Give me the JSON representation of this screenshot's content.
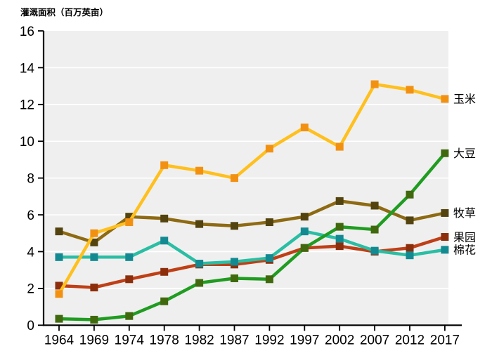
{
  "page": {
    "title_label": "灌溉面积（百万英亩）"
  },
  "chart_data": {
    "type": "line",
    "title": "灌溉面积（百万英亩）",
    "ylabel": "灌溉面积（百万英亩）",
    "xlabel": "",
    "categories": [
      "1964",
      "1969",
      "1974",
      "1978",
      "1982",
      "1987",
      "1992",
      "1997",
      "2002",
      "2007",
      "2012",
      "2017"
    ],
    "series": [
      {
        "key": "corn",
        "name": "玉米",
        "line_color": "#FFC01E",
        "marker_color": "#F29111",
        "values": [
          1.7,
          5.0,
          5.6,
          8.7,
          8.4,
          8.0,
          9.6,
          10.75,
          9.7,
          13.1,
          12.8,
          12.3
        ]
      },
      {
        "key": "soybeans",
        "name": "大豆",
        "line_color": "#209C21",
        "marker_color": "#40690D",
        "values": [
          0.35,
          0.3,
          0.5,
          1.3,
          2.3,
          2.55,
          2.5,
          4.2,
          5.35,
          5.2,
          7.1,
          9.35
        ]
      },
      {
        "key": "pasture",
        "name": "牧草",
        "line_color": "#8E6A12",
        "marker_color": "#53430E",
        "values": [
          5.1,
          4.5,
          5.9,
          5.8,
          5.5,
          5.4,
          5.6,
          5.9,
          6.75,
          6.5,
          5.7,
          6.1
        ]
      },
      {
        "key": "orchard",
        "name": "果园",
        "line_color": "#BF3F16",
        "marker_color": "#8C2E0C",
        "values": [
          2.15,
          2.05,
          2.5,
          2.9,
          3.3,
          3.3,
          3.55,
          4.2,
          4.3,
          4.0,
          4.2,
          4.8
        ]
      },
      {
        "key": "cotton",
        "name": "棉花",
        "line_color": "#2ABEA4",
        "marker_color": "#138A91",
        "values": [
          3.7,
          3.7,
          3.7,
          4.6,
          3.35,
          3.45,
          3.65,
          5.1,
          4.7,
          4.05,
          3.8,
          4.1
        ]
      }
    ],
    "ylim": [
      0,
      16
    ],
    "yticks": [
      0,
      2,
      4,
      6,
      8,
      10,
      12,
      14,
      16
    ],
    "grid": true,
    "plot_bg": "#EFEFEF",
    "grid_color": "#FFFFFF",
    "axis_color": "#000000",
    "legend_position": "right-of-last-point"
  }
}
